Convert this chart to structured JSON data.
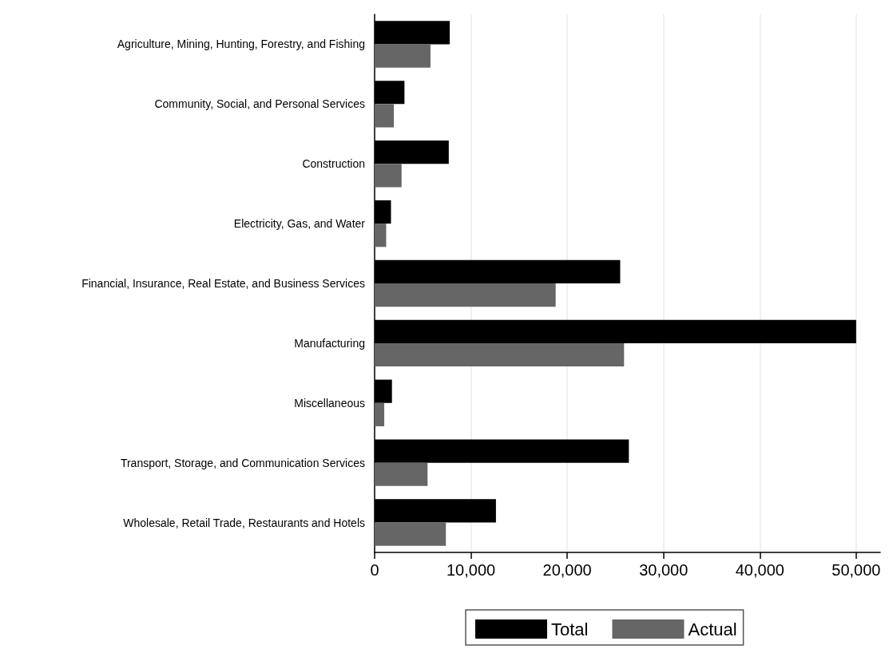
{
  "chart_data": {
    "type": "bar",
    "orientation": "horizontal",
    "categories": [
      "Agriculture, Mining, Hunting, Forestry, and Fishing",
      "Community, Social, and Personal Services",
      "Construction",
      "Electricity, Gas, and Water",
      "Financial, Insurance, Real Estate, and Business Services",
      "Manufacturing",
      "Miscellaneous",
      "Transport, Storage, and Communication Services",
      "Wholesale, Retail Trade, Restaurants and Hotels"
    ],
    "series": [
      {
        "name": "Total",
        "color": "#000000",
        "values": [
          7800,
          3100,
          7700,
          1700,
          25500,
          50000,
          1800,
          26400,
          12600
        ]
      },
      {
        "name": "Actual",
        "color": "#666666",
        "values": [
          5800,
          2000,
          2800,
          1200,
          18800,
          25900,
          1000,
          5500,
          7400
        ]
      }
    ],
    "xlim": [
      0,
      52500
    ],
    "xticks": [
      {
        "value": 0,
        "label": "0"
      },
      {
        "value": 10000,
        "label": "10,000"
      },
      {
        "value": 20000,
        "label": "20,000"
      },
      {
        "value": 30000,
        "label": "30,000"
      },
      {
        "value": 40000,
        "label": "40,000"
      },
      {
        "value": 50000,
        "label": "50,000"
      }
    ],
    "grid": "x",
    "legend": "bottom"
  }
}
